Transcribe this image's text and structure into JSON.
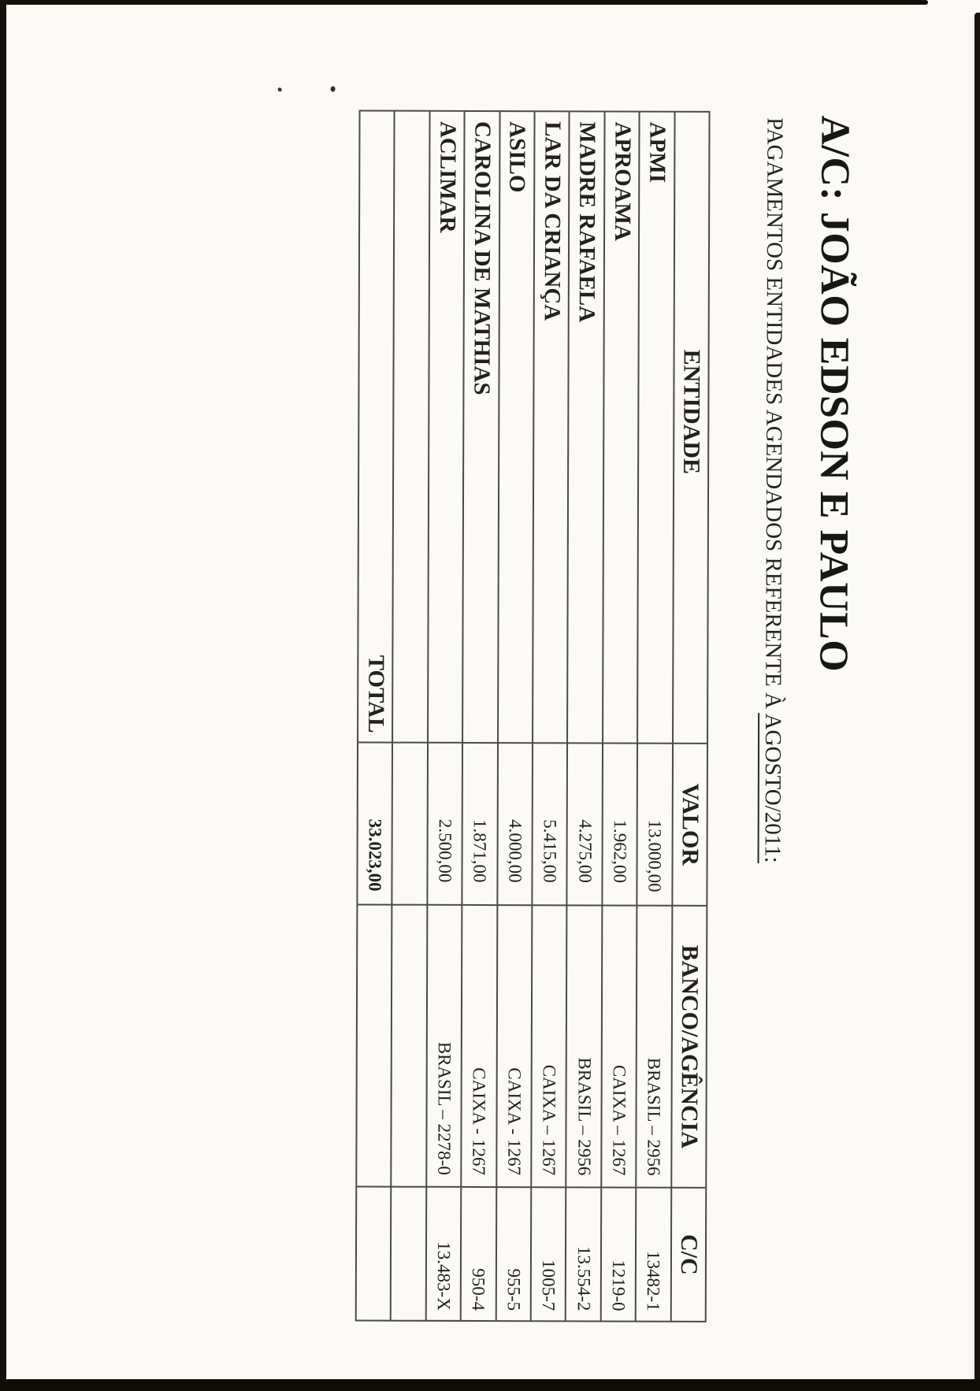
{
  "document": {
    "title": "A/C: JOÃO EDSON E PAULO",
    "subtitle_prefix": "PAGAMENTOS ENTIDADES AGENDADOS REFERENTE À ",
    "subtitle_underlined": "AGOSTO/2011:"
  },
  "table": {
    "headers": {
      "entidade": "ENTIDADE",
      "valor": "VALOR",
      "banco": "BANCO/AGÊNCIA",
      "cc": "C/C"
    },
    "rows": [
      {
        "entidade": "APMI",
        "valor": "13.000,00",
        "banco": "BRASIL – 2956",
        "cc": "13482-1"
      },
      {
        "entidade": "APROAMA",
        "valor": "1.962,00",
        "banco": "CAIXA – 1267",
        "cc": "1219-0"
      },
      {
        "entidade": "MADRE RAFAELA",
        "valor": "4.275,00",
        "banco": "BRASIL – 2956",
        "cc": "13.554-2"
      },
      {
        "entidade": "LAR DA CRIANÇA",
        "valor": "5.415,00",
        "banco": "CAIXA – 1267",
        "cc": "1005-7"
      },
      {
        "entidade": "ASILO",
        "valor": "4.000,00",
        "banco": "CAIXA - 1267",
        "cc": "955-5"
      },
      {
        "entidade": "CAROLINA DE MATHIAS",
        "valor": "1.871,00",
        "banco": "CAIXA - 1267",
        "cc": "950-4"
      },
      {
        "entidade": "ACLIMAR",
        "valor": "2.500,00",
        "banco": "BRASIL – 2278-0",
        "cc": "13.483-X"
      },
      {
        "entidade": "",
        "valor": "",
        "banco": "",
        "cc": ""
      }
    ],
    "total_label": "TOTAL",
    "total_value": "33.023,00"
  },
  "colors": {
    "paper": "#fbfaf7",
    "ink": "#1e1d1b",
    "table_line": "#4c4a47",
    "scan_edge": "#14100a"
  }
}
